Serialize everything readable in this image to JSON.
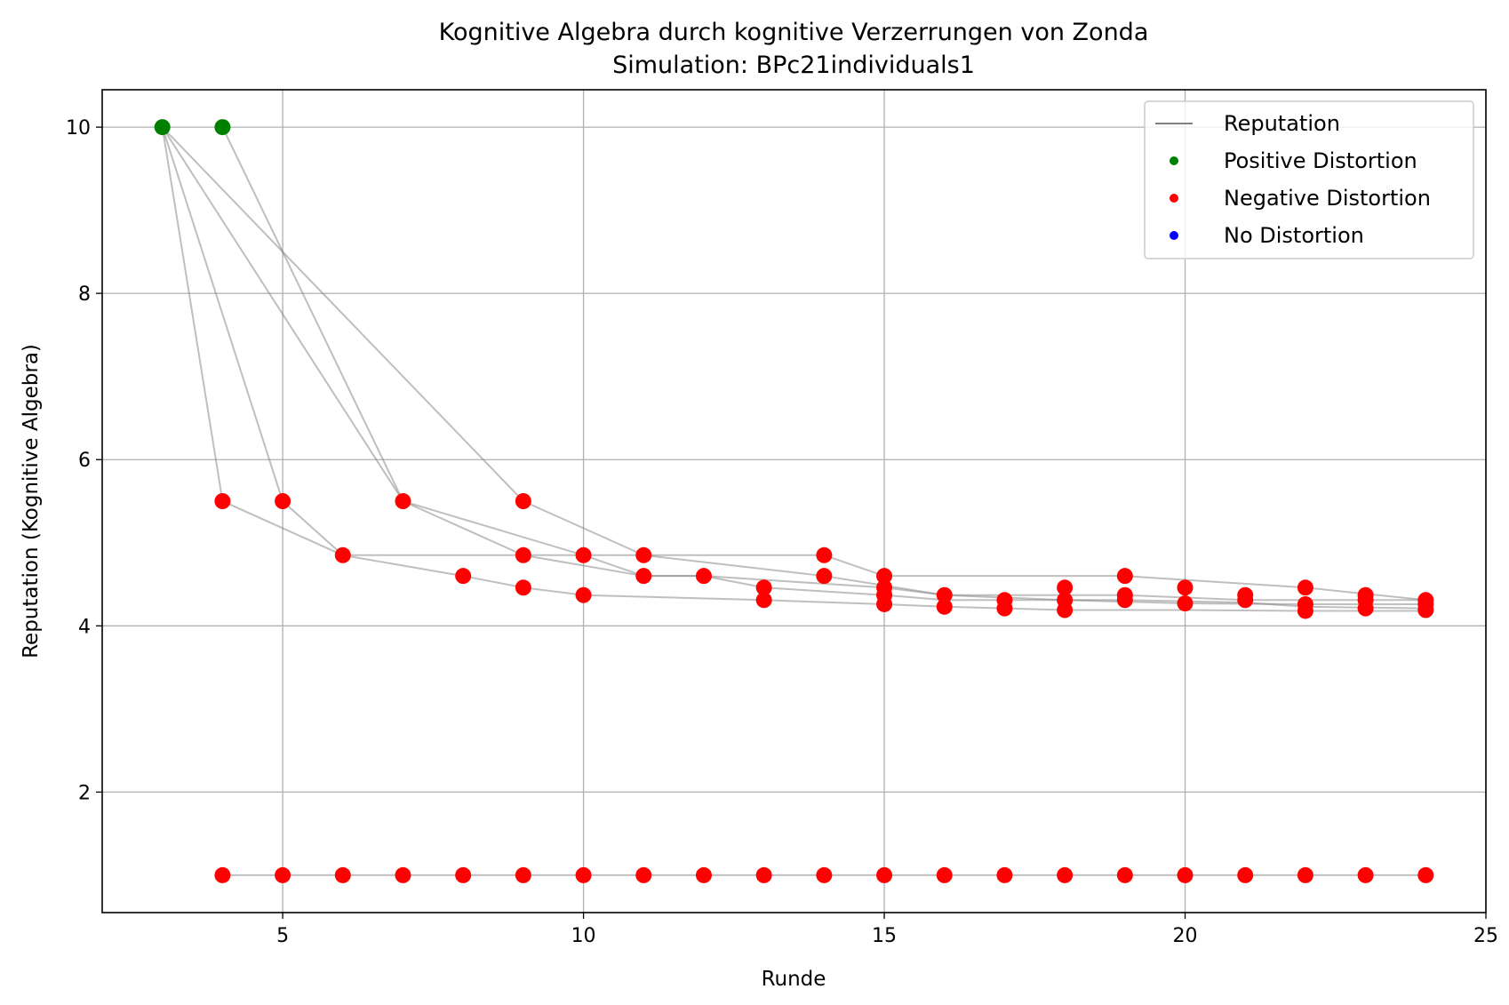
{
  "chart_data": {
    "type": "scatter",
    "title": "Kognitive Algebra durch kognitive Verzerrungen von Zonda",
    "subtitle": "Simulation: BPc21individuals1",
    "xlabel": "Runde",
    "ylabel": "Reputation (Kognitive Algebra)",
    "xlim": [
      2,
      25
    ],
    "ylim": [
      0.55,
      10.45
    ],
    "xticks": [
      5,
      10,
      15,
      20,
      25
    ],
    "yticks": [
      2,
      4,
      6,
      8,
      10
    ],
    "grid": true,
    "legend_position": "top-right",
    "legend": [
      {
        "label": "Reputation",
        "kind": "line",
        "color": "#808080"
      },
      {
        "label": "Positive Distortion",
        "kind": "marker",
        "color": "#008000"
      },
      {
        "label": "Negative Distortion",
        "kind": "marker",
        "color": "#ff0000"
      },
      {
        "label": "No Distortion",
        "kind": "marker",
        "color": "#0000ff"
      }
    ],
    "colors": {
      "line": "#808080",
      "positive": "#008000",
      "negative": "#ff0000",
      "none": "#0000ff"
    },
    "lines": [
      [
        [
          3,
          10
        ],
        [
          4,
          5.5
        ],
        [
          6,
          4.85
        ],
        [
          8,
          4.6
        ],
        [
          9,
          4.46
        ],
        [
          10,
          4.37
        ],
        [
          13,
          4.31
        ],
        [
          15,
          4.26
        ],
        [
          16,
          4.23
        ],
        [
          17,
          4.21
        ],
        [
          18,
          4.19
        ],
        [
          20,
          4.19
        ],
        [
          22,
          4.18
        ],
        [
          24,
          4.18
        ]
      ],
      [
        [
          3,
          10
        ],
        [
          5,
          5.5
        ],
        [
          6,
          4.85
        ],
        [
          10,
          4.85
        ],
        [
          11,
          4.6
        ],
        [
          12,
          4.6
        ],
        [
          13,
          4.46
        ],
        [
          15,
          4.37
        ],
        [
          16,
          4.31
        ],
        [
          17,
          4.31
        ],
        [
          19,
          4.31
        ],
        [
          21,
          4.28
        ],
        [
          22,
          4.23
        ],
        [
          24,
          4.21
        ]
      ],
      [
        [
          3,
          10
        ],
        [
          7,
          5.5
        ],
        [
          9,
          4.85
        ],
        [
          11,
          4.6
        ],
        [
          12,
          4.6
        ],
        [
          15,
          4.46
        ],
        [
          16,
          4.37
        ],
        [
          18,
          4.31
        ],
        [
          20,
          4.27
        ],
        [
          22,
          4.26
        ],
        [
          24,
          4.26
        ]
      ],
      [
        [
          3,
          10
        ],
        [
          9,
          5.5
        ],
        [
          11,
          4.85
        ],
        [
          14,
          4.6
        ],
        [
          16,
          4.37
        ],
        [
          19,
          4.37
        ],
        [
          21,
          4.31
        ],
        [
          24,
          4.31
        ]
      ],
      [
        [
          4,
          10
        ],
        [
          7,
          5.5
        ],
        [
          10,
          4.85
        ],
        [
          14,
          4.85
        ],
        [
          15,
          4.6
        ],
        [
          19,
          4.6
        ],
        [
          22,
          4.46
        ],
        [
          24,
          4.31
        ]
      ],
      [
        [
          4,
          1
        ],
        [
          24,
          1
        ]
      ]
    ],
    "positive_points": [
      [
        3,
        10
      ],
      [
        4,
        10
      ]
    ],
    "negative_points": [
      [
        4,
        5.5
      ],
      [
        5,
        5.5
      ],
      [
        7,
        5.5
      ],
      [
        9,
        5.5
      ],
      [
        6,
        4.85
      ],
      [
        9,
        4.85
      ],
      [
        10,
        4.85
      ],
      [
        11,
        4.85
      ],
      [
        14,
        4.85
      ],
      [
        8,
        4.6
      ],
      [
        11,
        4.6
      ],
      [
        12,
        4.6
      ],
      [
        14,
        4.6
      ],
      [
        15,
        4.6
      ],
      [
        19,
        4.6
      ],
      [
        9,
        4.46
      ],
      [
        13,
        4.46
      ],
      [
        15,
        4.46
      ],
      [
        18,
        4.46
      ],
      [
        20,
        4.46
      ],
      [
        22,
        4.46
      ],
      [
        10,
        4.37
      ],
      [
        15,
        4.37
      ],
      [
        16,
        4.37
      ],
      [
        19,
        4.37
      ],
      [
        21,
        4.37
      ],
      [
        23,
        4.37
      ],
      [
        13,
        4.31
      ],
      [
        17,
        4.31
      ],
      [
        18,
        4.31
      ],
      [
        19,
        4.31
      ],
      [
        21,
        4.31
      ],
      [
        23,
        4.31
      ],
      [
        24,
        4.31
      ],
      [
        15,
        4.26
      ],
      [
        16,
        4.23
      ],
      [
        17,
        4.21
      ],
      [
        18,
        4.19
      ],
      [
        20,
        4.27
      ],
      [
        22,
        4.26
      ],
      [
        22,
        4.18
      ],
      [
        23,
        4.21
      ],
      [
        24,
        4.26
      ],
      [
        24,
        4.19
      ],
      [
        4,
        1
      ],
      [
        5,
        1
      ],
      [
        6,
        1
      ],
      [
        7,
        1
      ],
      [
        8,
        1
      ],
      [
        9,
        1
      ],
      [
        10,
        1
      ],
      [
        11,
        1
      ],
      [
        12,
        1
      ],
      [
        13,
        1
      ],
      [
        14,
        1
      ],
      [
        15,
        1
      ],
      [
        16,
        1
      ],
      [
        17,
        1
      ],
      [
        18,
        1
      ],
      [
        19,
        1
      ],
      [
        20,
        1
      ],
      [
        21,
        1
      ],
      [
        22,
        1
      ],
      [
        23,
        1
      ],
      [
        24,
        1
      ]
    ],
    "none_points": []
  }
}
